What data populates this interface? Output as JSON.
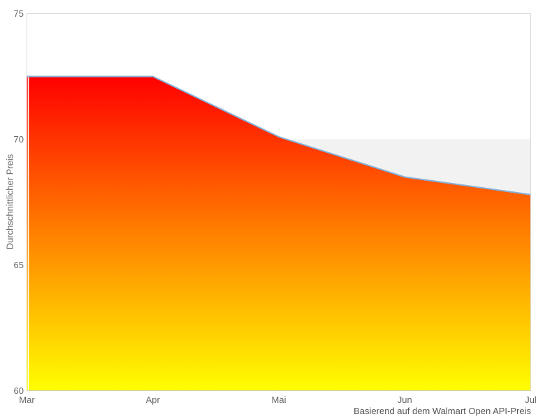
{
  "chart_data": {
    "type": "area",
    "title": "",
    "ylabel": "Durchschnittlicher Preis",
    "xlabel": "",
    "caption": "Basierend auf dem Walmart Open API-Preis",
    "categories": [
      "Mar",
      "Apr",
      "Mai",
      "Jun",
      "Jul"
    ],
    "series": [
      {
        "name": "Durchschnittlicher Preis",
        "values": [
          72.5,
          72.5,
          70.1,
          68.5,
          67.8
        ]
      }
    ],
    "reference_band": {
      "level": 70,
      "color": "#f2f2f2"
    },
    "ylim": [
      60,
      75
    ],
    "yticks": [
      75,
      70,
      65,
      60
    ],
    "grid": false,
    "legend": "none",
    "colors": {
      "line": "#86b0d8",
      "gradient_top": "#ff0000",
      "gradient_bottom": "#ffff00",
      "plot_border": "#d9d9d9",
      "axis_line": "#c9c9c9",
      "tick_label": "#666666",
      "axis_title": "#666666",
      "caption_text": "#555555",
      "background": "#ffffff"
    }
  }
}
